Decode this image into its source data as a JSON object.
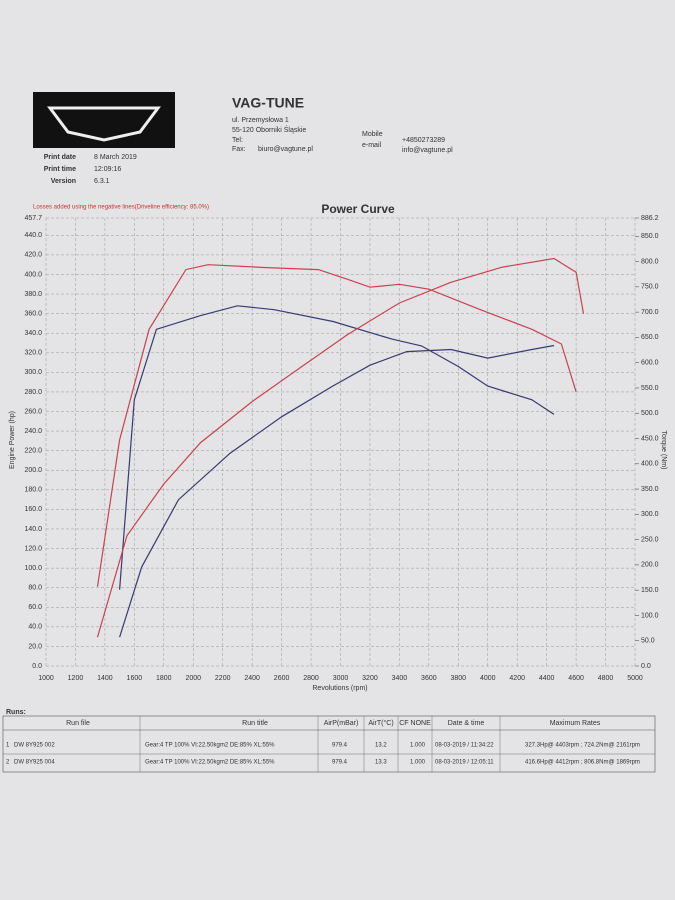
{
  "header": {
    "company": "VAG-TUNE",
    "address": [
      "ul. Przemysłowa 1",
      "55-120 Oborniki Śląskie"
    ],
    "tel": "Tel:",
    "fax": "Fax:",
    "fax_email": "biuro@vagtune.pl",
    "mobile_label": "Mobile",
    "mobile": "+4850273289",
    "email_label": "e-mail",
    "email": "info@vagtune.pl"
  },
  "print_info": {
    "rows": [
      [
        "Print date",
        "8 March 2019"
      ],
      [
        "Print time",
        "12:09:16"
      ],
      [
        "Version",
        "6.3.1"
      ]
    ]
  },
  "chart_data": {
    "type": "line",
    "title": "Power Curve",
    "subtitle": "Losses added using the negative lines(Driveline efficiency: 85.0%)",
    "xlabel": "Revolutions (rpm)",
    "ylabel": "Engine Power (hp)",
    "y2label": "Torque (Nm)",
    "xlim": [
      1000,
      5000
    ],
    "xticks": [
      1000,
      1200,
      1400,
      1600,
      1800,
      2000,
      2200,
      2400,
      2600,
      2800,
      3000,
      3200,
      3400,
      3600,
      3800,
      4000,
      4200,
      4400,
      4600,
      4800,
      5000
    ],
    "ylim": [
      0,
      457.7
    ],
    "yticks": [
      {
        "value": 0,
        "label": "0.0"
      },
      {
        "value": 20,
        "label": "20.0"
      },
      {
        "value": 40,
        "label": "40.0"
      },
      {
        "value": 60,
        "label": "60.0"
      },
      {
        "value": 80,
        "label": "80.0"
      },
      {
        "value": 100,
        "label": "100.0"
      },
      {
        "value": 120,
        "label": "120.0"
      },
      {
        "value": 140,
        "label": "140.0"
      },
      {
        "value": 160,
        "label": "160.0"
      },
      {
        "value": 180,
        "label": "180.0"
      },
      {
        "value": 200,
        "label": "200.0"
      },
      {
        "value": 220,
        "label": "220.0"
      },
      {
        "value": 240,
        "label": "240.0"
      },
      {
        "value": 260,
        "label": "260.0"
      },
      {
        "value": 280,
        "label": "280.0"
      },
      {
        "value": 300,
        "label": "300.0"
      },
      {
        "value": 320,
        "label": "320.0"
      },
      {
        "value": 340,
        "label": "340.0"
      },
      {
        "value": 360,
        "label": "360.0"
      },
      {
        "value": 380,
        "label": "380.0"
      },
      {
        "value": 400,
        "label": "400.0"
      },
      {
        "value": 420,
        "label": "420.0"
      },
      {
        "value": 440,
        "label": "440.0"
      },
      457.7
    ],
    "y2lim": [
      0,
      886.2
    ],
    "y2ticks": [
      {
        "value": 0,
        "label": "0.0"
      },
      {
        "value": 50,
        "label": "50.0"
      },
      {
        "value": 100,
        "label": "100.0"
      },
      {
        "value": 150,
        "label": "150.0"
      },
      {
        "value": 200,
        "label": "200.0"
      },
      {
        "value": 250,
        "label": "250.0"
      },
      {
        "value": 300,
        "label": "300.0"
      },
      {
        "value": 350,
        "label": "350.0"
      },
      {
        "value": 400,
        "label": "400.0"
      },
      {
        "value": 450,
        "label": "450.0"
      },
      {
        "value": 500,
        "label": "500.0"
      },
      {
        "value": 550,
        "label": "550.0"
      },
      {
        "value": 600,
        "label": "600.0"
      },
      {
        "value": 650,
        "label": "650.0"
      },
      {
        "value": 700,
        "label": "700.0"
      },
      {
        "value": 750,
        "label": "750.0"
      },
      {
        "value": 800,
        "label": "800.0"
      },
      {
        "value": 850,
        "label": "850.0"
      },
      886.2
    ],
    "grid": true,
    "series": [
      {
        "color": "#c8434f",
        "x": [
          1350,
          1500,
          1700,
          1950,
          2100,
          2500,
          2850,
          3050,
          3200,
          3400,
          3600,
          3950,
          4300,
          4500,
          4600
        ],
        "values": [
          81,
          231,
          344,
          405,
          410,
          407,
          405,
          395,
          387,
          390,
          385,
          364,
          344,
          329,
          280
        ]
      },
      {
        "color": "#3a3a6e",
        "x": [
          1500,
          1600,
          1750,
          2050,
          2300,
          2550,
          2950,
          3350,
          3550,
          3800,
          4000,
          4300,
          4450
        ],
        "values": [
          78,
          272,
          344,
          358,
          368,
          364,
          352,
          334,
          327,
          306,
          286,
          272,
          257
        ]
      },
      {
        "color": "#c8434f",
        "axis": "y2",
        "x": [
          1350,
          1550,
          1800,
          2050,
          2400,
          2750,
          3050,
          3400,
          3750,
          4100,
          4450,
          4600,
          4650
        ],
        "values": [
          57,
          258,
          360,
          442,
          523,
          595,
          656,
          718,
          759,
          789,
          806,
          779,
          697
        ]
      },
      {
        "color": "#3a3a6e",
        "axis": "y2",
        "x": [
          1500,
          1650,
          1900,
          2250,
          2600,
          2950,
          3200,
          3450,
          3750,
          4000,
          4300,
          4450
        ],
        "values": [
          57,
          196,
          329,
          421,
          493,
          554,
          595,
          622,
          626,
          609,
          626,
          634
        ]
      }
    ]
  },
  "runs": {
    "title": "Runs:",
    "columns": [
      "Run file",
      "Run title",
      "AirP(mBar)",
      "AirT(°C)",
      "CF NONE",
      "Date & time",
      "Maximum Rates"
    ],
    "rows": [
      [
        "1",
        "DW 8Y925 002",
        "Gear:4 TP 100% VI:22.50kgm2 DE:85% XL:55%",
        "979.4",
        "13.2",
        "1.000",
        "08-03-2019 / 11:34:22",
        "327.3Hp@ 4403rpm ; 724.2Nm@ 2161rpm"
      ],
      [
        "2",
        "DW 8Y925 004",
        "Gear:4 TP 100% VI:22.50kgm2 DE:85% XL:55%",
        "979.4",
        "13.3",
        "1.000",
        "08-03-2019 / 12:05:11",
        "416.6Hp@ 4412rpm ; 806.8Nm@ 1869rpm"
      ]
    ]
  }
}
